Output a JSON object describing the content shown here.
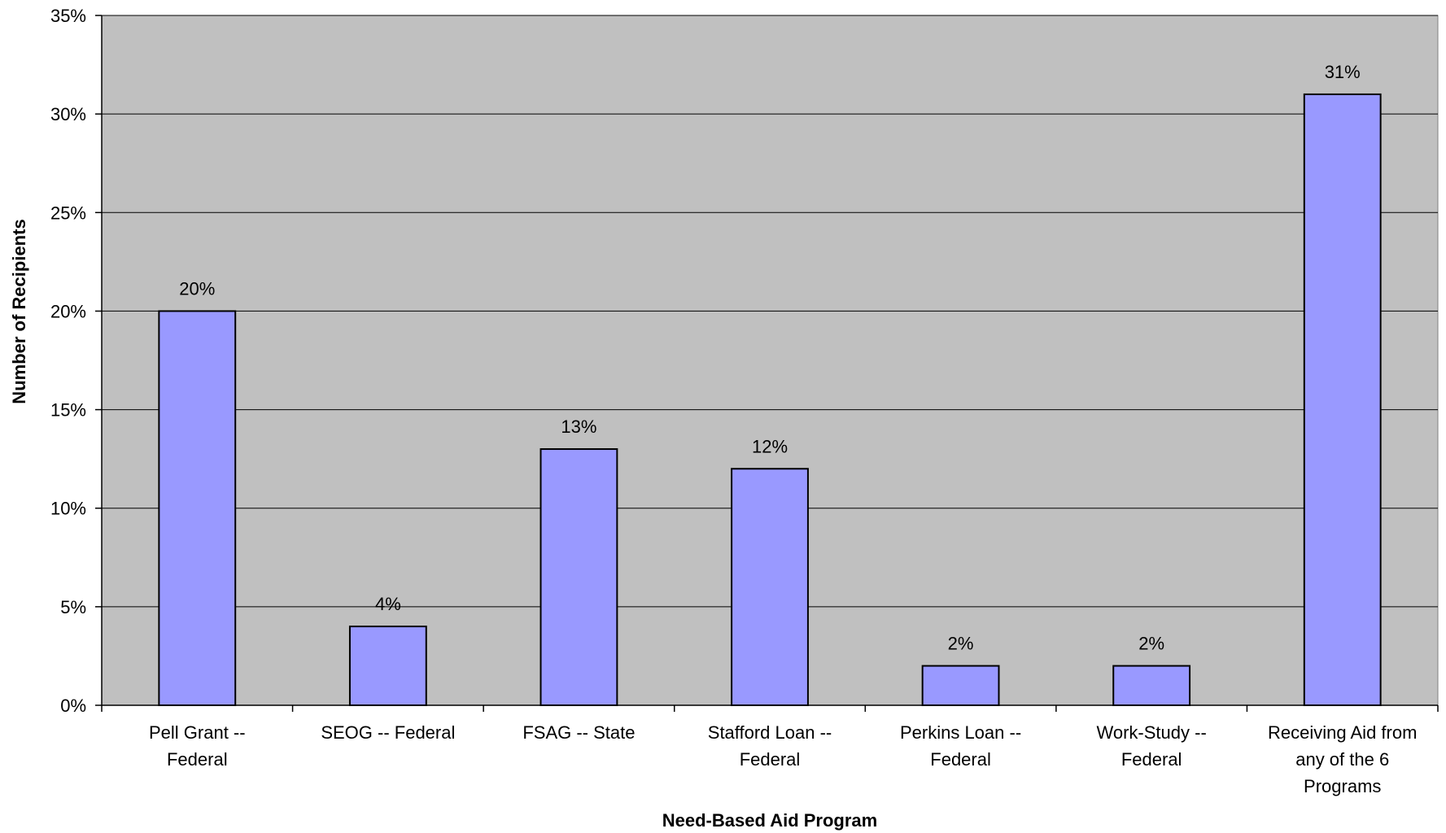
{
  "chart_data": {
    "type": "bar",
    "title": "",
    "xlabel": "Need-Based Aid Program",
    "ylabel": "Number of Recipients",
    "categories": [
      [
        "Pell Grant --",
        "Federal"
      ],
      [
        "SEOG -- Federal"
      ],
      [
        "FSAG -- State"
      ],
      [
        "Stafford Loan --",
        "Federal"
      ],
      [
        "Perkins Loan --",
        "Federal"
      ],
      [
        "Work-Study --",
        "Federal"
      ],
      [
        "Receiving Aid from",
        "any of the 6",
        "Programs"
      ]
    ],
    "values": [
      20,
      4,
      13,
      12,
      2,
      2,
      31
    ],
    "data_labels": [
      "20%",
      "4%",
      "13%",
      "12%",
      "2%",
      "2%",
      "31%"
    ],
    "ylim": [
      0,
      35
    ],
    "y_ticks": [
      0,
      5,
      10,
      15,
      20,
      25,
      30,
      35
    ],
    "y_tick_labels": [
      "0%",
      "5%",
      "10%",
      "15%",
      "20%",
      "25%",
      "30%",
      "35%"
    ],
    "grid": true,
    "legend": "none",
    "colors": {
      "plot_background": "#c0c0c0",
      "bar_fill": "#9999ff",
      "bar_stroke": "#000000",
      "gridline": "#000000"
    }
  }
}
